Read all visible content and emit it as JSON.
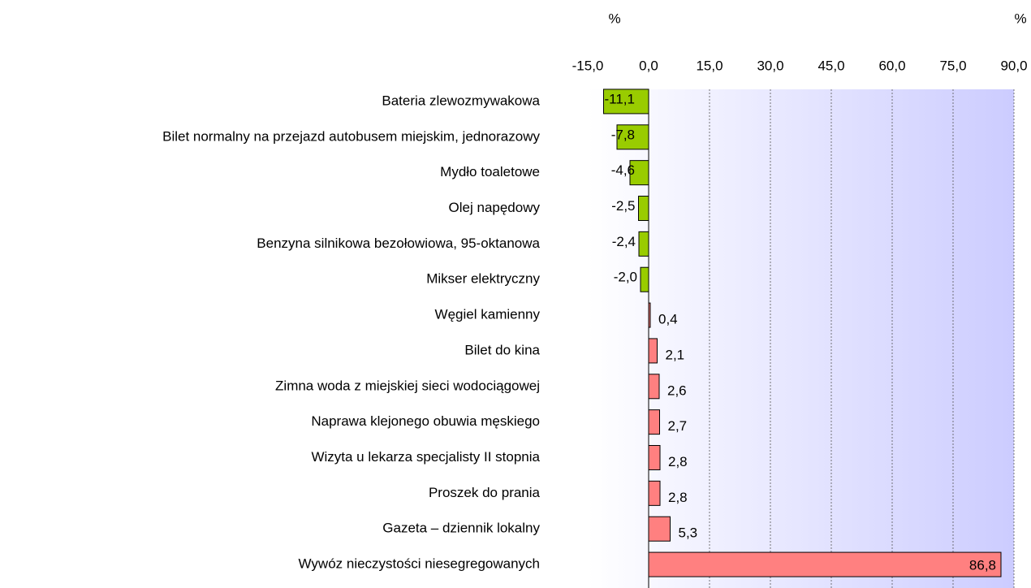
{
  "chart_data": {
    "type": "bar",
    "orientation": "horizontal",
    "unit_labels": [
      "%",
      "%"
    ],
    "categories": [
      "Bateria zlewozmywakowa",
      "Bilet normalny na przejazd autobusem miejskim, jednorazowy",
      "Mydło toaletowe",
      "Olej napędowy",
      "Benzyna silnikowa bezołowiowa, 95-oktanowa",
      "Mikser elektryczny",
      "Węgiel kamienny",
      "Bilet do kina",
      "Zimna woda z miejskiej sieci wodociągowej",
      "Naprawa klejonego obuwia męskiego",
      "Wizyta u lekarza specjalisty II stopnia",
      "Proszek do prania",
      "Gazeta – dziennik lokalny",
      "Wywóz nieczystości niesegregowanych"
    ],
    "values": [
      -11.1,
      -7.8,
      -4.6,
      -2.5,
      -2.4,
      -2.0,
      0.4,
      2.1,
      2.6,
      2.7,
      2.8,
      2.8,
      5.3,
      86.8
    ],
    "value_labels": [
      "-11,1",
      "-7,8",
      "-4,6",
      "-2,5",
      "-2,4",
      "-2,0",
      "0,4",
      "2,1",
      "2,6",
      "2,7",
      "2,8",
      "2,8",
      "5,3",
      "86,8"
    ],
    "color_negative": "#99cc00",
    "color_positive": "#ff8080",
    "xlim": [
      -15,
      90
    ],
    "xticks": [
      {
        "value": -15,
        "label": "-15,0"
      },
      {
        "value": 0,
        "label": "0,0"
      },
      {
        "value": 15,
        "label": "15,0"
      },
      {
        "value": 30,
        "label": "30,0"
      },
      {
        "value": 45,
        "label": "45,0"
      },
      {
        "value": 60,
        "label": "60,0"
      },
      {
        "value": 75,
        "label": "75,0"
      },
      {
        "value": 90,
        "label": "90,0"
      }
    ],
    "grid": true
  }
}
